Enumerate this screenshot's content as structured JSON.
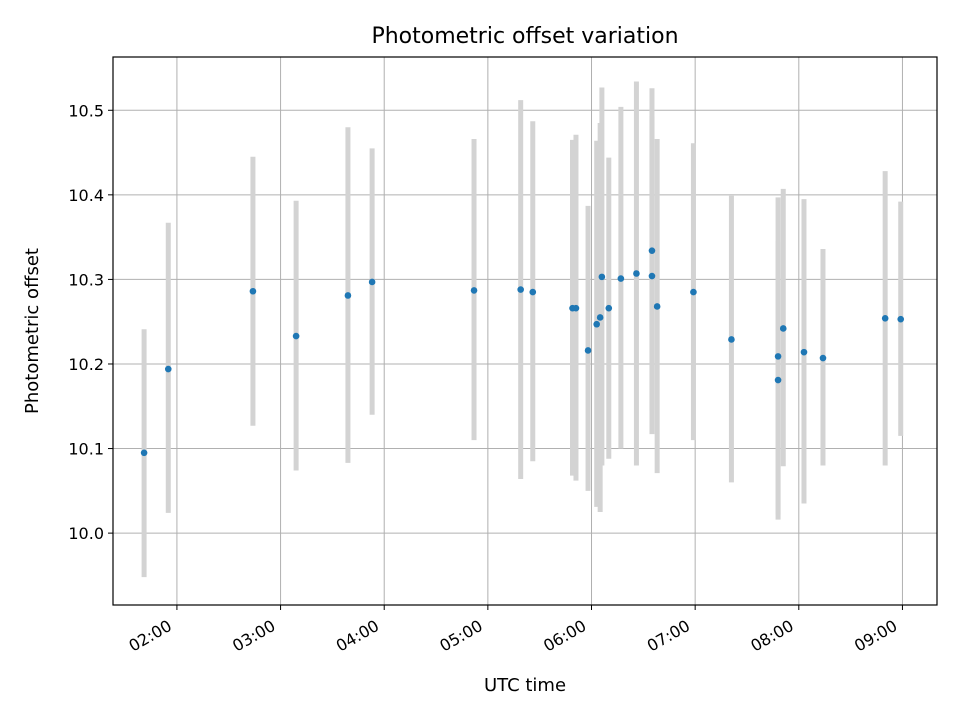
{
  "chart_data": {
    "type": "scatter",
    "title": "Photometric offset variation",
    "xlabel": "UTC time",
    "ylabel": "Photometric offset",
    "x_ticks": [
      "02:00",
      "03:00",
      "04:00",
      "05:00",
      "06:00",
      "07:00",
      "08:00",
      "09:00"
    ],
    "y_ticks": [
      "10.0",
      "10.1",
      "10.2",
      "10.3",
      "10.4",
      "10.5"
    ],
    "xlim": [
      "01:23",
      "09:20"
    ],
    "ylim": [
      9.915,
      10.563
    ],
    "grid": true,
    "colors": {
      "marker": "#1f77b4",
      "errorbar": "#d3d3d3",
      "grid": "#b0b0b0"
    },
    "points": [
      {
        "x": "01:41",
        "y": 10.095,
        "ylow": 9.948,
        "yhigh": 10.241
      },
      {
        "x": "01:55",
        "y": 10.194,
        "ylow": 10.024,
        "yhigh": 10.367
      },
      {
        "x": "02:44",
        "y": 10.286,
        "ylow": 10.127,
        "yhigh": 10.445
      },
      {
        "x": "03:09",
        "y": 10.233,
        "ylow": 10.074,
        "yhigh": 10.393
      },
      {
        "x": "03:39",
        "y": 10.281,
        "ylow": 10.083,
        "yhigh": 10.48
      },
      {
        "x": "03:53",
        "y": 10.297,
        "ylow": 10.14,
        "yhigh": 10.455
      },
      {
        "x": "04:52",
        "y": 10.287,
        "ylow": 10.11,
        "yhigh": 10.466
      },
      {
        "x": "05:19",
        "y": 10.288,
        "ylow": 10.064,
        "yhigh": 10.512
      },
      {
        "x": "05:26",
        "y": 10.285,
        "ylow": 10.085,
        "yhigh": 10.487
      },
      {
        "x": "05:49",
        "y": 10.266,
        "ylow": 10.068,
        "yhigh": 10.465
      },
      {
        "x": "05:51",
        "y": 10.266,
        "ylow": 10.062,
        "yhigh": 10.471
      },
      {
        "x": "05:58",
        "y": 10.216,
        "ylow": 10.05,
        "yhigh": 10.387
      },
      {
        "x": "06:03",
        "y": 10.247,
        "ylow": 10.031,
        "yhigh": 10.464
      },
      {
        "x": "06:05",
        "y": 10.255,
        "ylow": 10.025,
        "yhigh": 10.485
      },
      {
        "x": "06:06",
        "y": 10.303,
        "ylow": 10.08,
        "yhigh": 10.527
      },
      {
        "x": "06:10",
        "y": 10.266,
        "ylow": 10.088,
        "yhigh": 10.444
      },
      {
        "x": "06:17",
        "y": 10.301,
        "ylow": 10.1,
        "yhigh": 10.504
      },
      {
        "x": "06:26",
        "y": 10.307,
        "ylow": 10.08,
        "yhigh": 10.534
      },
      {
        "x": "06:35",
        "y": 10.334,
        "ylow": 10.145,
        "yhigh": 10.493
      },
      {
        "x": "06:35",
        "y": 10.304,
        "ylow": 10.117,
        "yhigh": 10.526
      },
      {
        "x": "06:38",
        "y": 10.268,
        "ylow": 10.071,
        "yhigh": 10.466
      },
      {
        "x": "06:59",
        "y": 10.285,
        "ylow": 10.11,
        "yhigh": 10.461
      },
      {
        "x": "07:21",
        "y": 10.229,
        "ylow": 10.06,
        "yhigh": 10.399
      },
      {
        "x": "07:48",
        "y": 10.209,
        "ylow": 10.022,
        "yhigh": 10.397
      },
      {
        "x": "07:48",
        "y": 10.181,
        "ylow": 10.016,
        "yhigh": 10.345
      },
      {
        "x": "07:51",
        "y": 10.242,
        "ylow": 10.079,
        "yhigh": 10.407
      },
      {
        "x": "08:03",
        "y": 10.214,
        "ylow": 10.035,
        "yhigh": 10.395
      },
      {
        "x": "08:14",
        "y": 10.207,
        "ylow": 10.08,
        "yhigh": 10.336
      },
      {
        "x": "08:50",
        "y": 10.254,
        "ylow": 10.08,
        "yhigh": 10.428
      },
      {
        "x": "08:59",
        "y": 10.253,
        "ylow": 10.115,
        "yhigh": 10.392
      }
    ]
  }
}
